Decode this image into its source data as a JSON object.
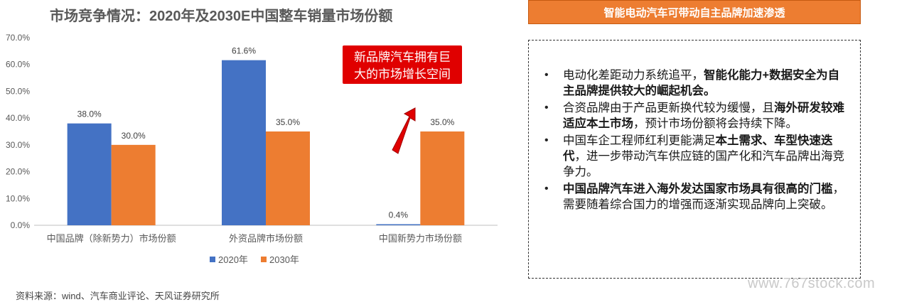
{
  "chart_data": {
    "type": "bar",
    "title": "市场竞争情况：2020年及2030E中国整车销量市场份额",
    "categories": [
      "中国品牌（除新势力）市场份额",
      "外资品牌市场份额",
      "中国新势力市场份额"
    ],
    "series": [
      {
        "name": "2020年",
        "values": [
          38.0,
          61.6,
          0.4
        ],
        "labels": [
          "38.0%",
          "61.6%",
          "0.4%"
        ],
        "color": "#4472c4"
      },
      {
        "name": "2030年",
        "values": [
          30.0,
          35.0,
          35.0
        ],
        "labels": [
          "30.0%",
          "35.0%",
          "35.0%"
        ],
        "color": "#ed7d31"
      }
    ],
    "y_ticks": [
      "0.0%",
      "10.0%",
      "20.0%",
      "30.0%",
      "40.0%",
      "50.0%",
      "60.0%",
      "70.0%"
    ],
    "ylim": [
      0,
      70
    ],
    "grid": false,
    "legend_position": "bottom",
    "callout": {
      "line1": "新品牌汽车拥有巨",
      "line2": "大的市场增长空间",
      "color": "#e00000"
    }
  },
  "source_text": "资料来源：wind、汽车商业评论、天风证券研究所",
  "right_panel": {
    "header": "智能电动汽车可带动自主品牌加速渗透",
    "bullets": [
      {
        "parts": [
          {
            "text": "电动化差距动力系统追平，",
            "bold": false
          },
          {
            "text": "智能化能力+数据安全为自主品牌提供较大的崛起机会。",
            "bold": true
          }
        ]
      },
      {
        "parts": [
          {
            "text": "合资品牌由于产品更新换代较为缓慢，且",
            "bold": false
          },
          {
            "text": "海外研发较难适应本土市场",
            "bold": true
          },
          {
            "text": "，预计市场份额将会持续下降。",
            "bold": false
          }
        ]
      },
      {
        "parts": [
          {
            "text": "中国车企工程师红利更能满足",
            "bold": false
          },
          {
            "text": "本土需求、车型快速迭代",
            "bold": true
          },
          {
            "text": "，进一步带动汽车供应链的国产化和汽车品牌出海竞争力。",
            "bold": false
          }
        ]
      },
      {
        "parts": [
          {
            "text": "中国品牌汽车进入海外发达国家市场具有很高的门槛",
            "bold": true
          },
          {
            "text": "，需要随着综合国力的增强而逐渐实现品牌向上突破。",
            "bold": false
          }
        ]
      }
    ]
  },
  "watermark": "www.767stock.com"
}
